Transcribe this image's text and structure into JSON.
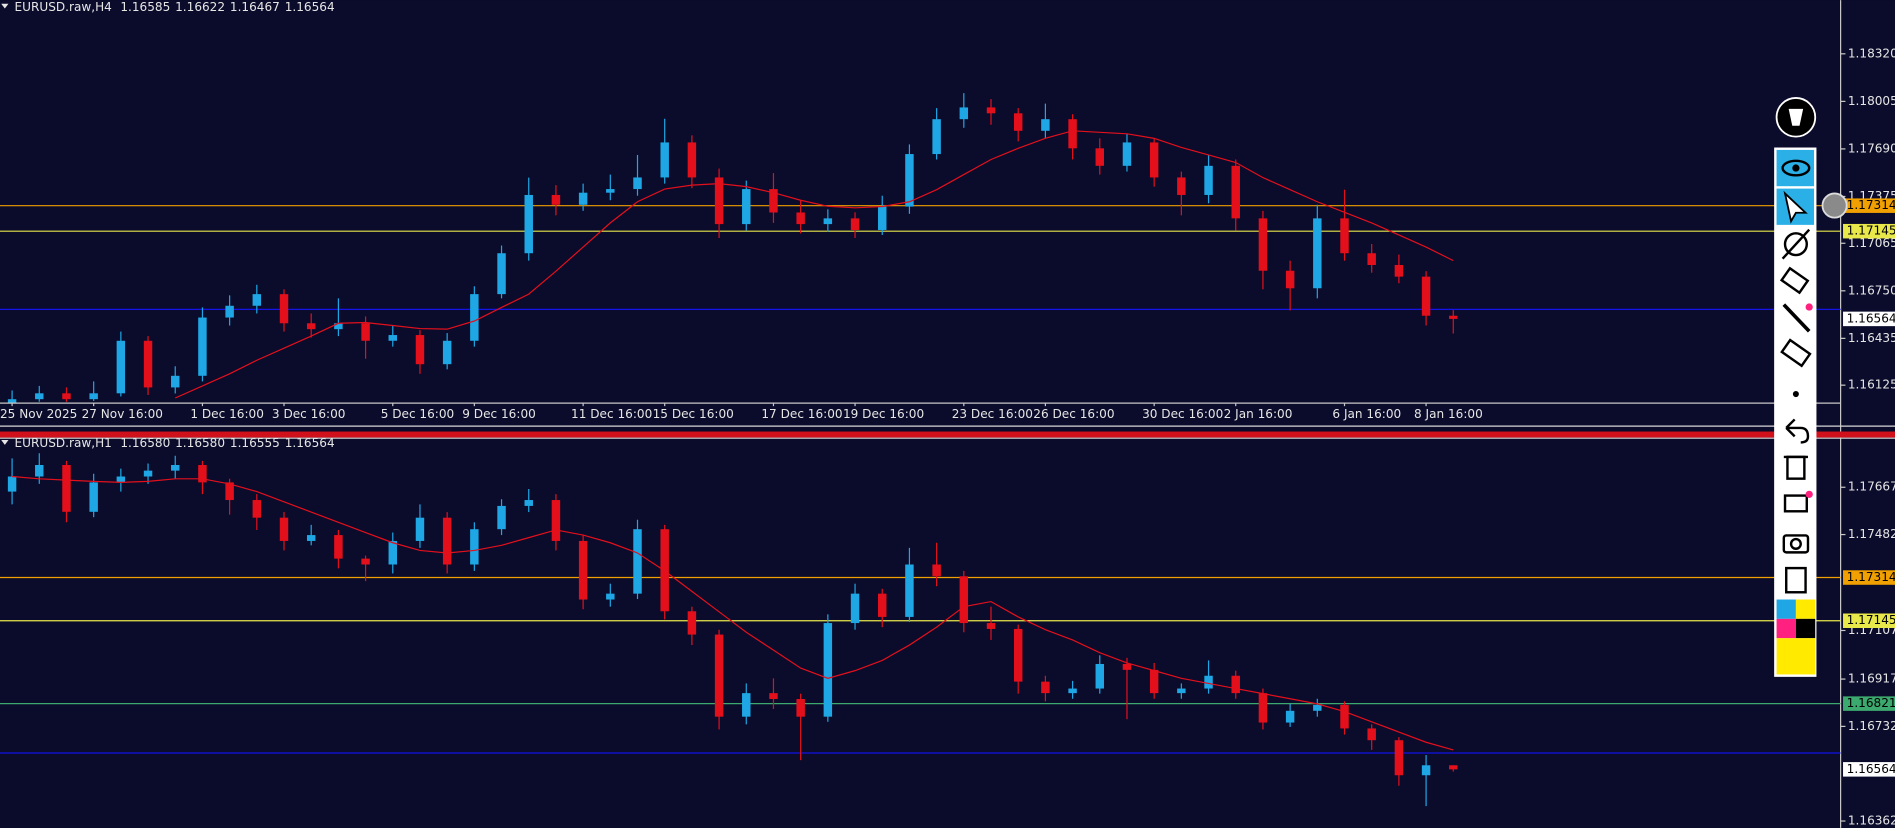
{
  "chart_data": [
    {
      "type": "candlestick",
      "title": "EURUSD.raw,H4",
      "header": [
        1.16585,
        1.16622,
        1.16467,
        1.16564
      ],
      "categories": [
        "25 Nov 2025",
        null,
        null,
        "27 Nov 16:00",
        null,
        null,
        null,
        "1 Dec 16:00",
        null,
        null,
        "3 Dec 16:00",
        null,
        null,
        null,
        "5 Dec 16:00",
        null,
        null,
        "9 Dec 16:00",
        null,
        null,
        null,
        "11 Dec 16:00",
        null,
        null,
        "15 Dec 16:00",
        null,
        null,
        null,
        "17 Dec 16:00",
        null,
        null,
        "19 Dec 16:00",
        null,
        null,
        null,
        "23 Dec 16:00",
        null,
        null,
        "26 Dec 16:00",
        null,
        null,
        null,
        "30 Dec 16:00",
        null,
        null,
        "2 Jan 16:00",
        null,
        null,
        null,
        "6 Jan 16:00",
        null,
        null,
        "8 Jan 16:00",
        null
      ],
      "open": [
        1.16,
        1.16032,
        1.16071,
        1.16032,
        1.16071,
        1.16419,
        1.1611,
        1.16187,
        1.16573,
        1.16651,
        1.16728,
        1.16535,
        1.16496,
        1.16535,
        1.16419,
        1.16457,
        1.16264,
        1.16419,
        1.16728,
        1.16999,
        1.17385,
        1.1732,
        1.174,
        1.17424,
        1.17501,
        1.17733,
        1.17501,
        1.17192,
        1.17424,
        1.17269,
        1.17192,
        1.1723,
        1.17153,
        1.17308,
        1.17656,
        1.17887,
        1.17965,
        1.17926,
        1.1781,
        1.17887,
        1.17694,
        1.17578,
        1.17733,
        1.17501,
        1.17385,
        1.17578,
        1.1723,
        1.16883,
        1.16767,
        1.1723,
        1.16999,
        1.16921,
        1.16844,
        1.16585
      ],
      "high": [
        1.1609,
        1.1612,
        1.1611,
        1.1615,
        1.1648,
        1.1645,
        1.1625,
        1.1664,
        1.1672,
        1.1679,
        1.1676,
        1.166,
        1.167,
        1.1658,
        1.1652,
        1.1649,
        1.1647,
        1.1678,
        1.1705,
        1.175,
        1.1745,
        1.1746,
        1.1752,
        1.1765,
        1.1789,
        1.1778,
        1.1756,
        1.1748,
        1.1753,
        1.1735,
        1.1729,
        1.1727,
        1.1738,
        1.1772,
        1.1796,
        1.1806,
        1.1802,
        1.1796,
        1.1799,
        1.1792,
        1.1776,
        1.1779,
        1.1776,
        1.1754,
        1.1765,
        1.1762,
        1.1728,
        1.1695,
        1.1732,
        1.1742,
        1.1706,
        1.1699,
        1.1688,
        1.16622
      ],
      "low": [
        1.16015,
        1.16015,
        1.16015,
        1.1602,
        1.1605,
        1.1606,
        1.1607,
        1.1615,
        1.1652,
        1.166,
        1.1648,
        1.1644,
        1.1645,
        1.163,
        1.1638,
        1.162,
        1.1623,
        1.1638,
        1.167,
        1.1695,
        1.1725,
        1.1728,
        1.1735,
        1.1738,
        1.1746,
        1.1743,
        1.171,
        1.1715,
        1.172,
        1.1713,
        1.1714,
        1.171,
        1.1712,
        1.1726,
        1.1762,
        1.1783,
        1.1785,
        1.1774,
        1.1776,
        1.1762,
        1.1752,
        1.1754,
        1.1744,
        1.1725,
        1.1733,
        1.1715,
        1.1676,
        1.1662,
        1.167,
        1.1695,
        1.1687,
        1.168,
        1.1652,
        1.16467
      ],
      "close": [
        1.16032,
        1.16071,
        1.16032,
        1.16071,
        1.16419,
        1.1611,
        1.16187,
        1.16573,
        1.16651,
        1.16728,
        1.16535,
        1.16496,
        1.16535,
        1.16419,
        1.16457,
        1.16264,
        1.16419,
        1.16728,
        1.16999,
        1.17385,
        1.1732,
        1.174,
        1.17424,
        1.17501,
        1.17733,
        1.17501,
        1.17192,
        1.17424,
        1.17269,
        1.17192,
        1.1723,
        1.17153,
        1.17308,
        1.17656,
        1.17887,
        1.17965,
        1.17926,
        1.1781,
        1.17887,
        1.17694,
        1.17578,
        1.17733,
        1.17501,
        1.17385,
        1.17578,
        1.1723,
        1.16883,
        1.16767,
        1.1723,
        1.16999,
        1.16921,
        1.16844,
        1.16585,
        1.16564
      ],
      "up_color": "#1ea7e4",
      "down_color": "#e3101c",
      "ma": {
        "color": "#e3101c",
        "values": [
          null,
          null,
          null,
          null,
          null,
          null,
          1.1604,
          1.1612,
          1.162,
          1.1629,
          1.1637,
          1.1645,
          1.16535,
          1.1654,
          1.1652,
          1.165,
          1.16496,
          1.1655,
          1.1664,
          1.16728,
          1.1688,
          1.1704,
          1.172,
          1.1734,
          1.17424,
          1.1745,
          1.1746,
          1.1744,
          1.174,
          1.1735,
          1.1731,
          1.173,
          1.17308,
          1.1734,
          1.1742,
          1.1752,
          1.1762,
          1.17694,
          1.1776,
          1.1781,
          1.178,
          1.1779,
          1.1776,
          1.177,
          1.1765,
          1.176,
          1.175,
          1.1742,
          1.1734,
          1.1727,
          1.172,
          1.1712,
          1.1704,
          1.1695
        ]
      },
      "ylim": [
        1.1601,
        1.1858
      ],
      "yticks": [
        {
          "value": 1.1832,
          "label": "1.18320"
        },
        1.18005,
        {
          "value": 1.1769,
          "label": "1.17690"
        },
        1.17375,
        1.17065,
        {
          "value": 1.1675,
          "label": "1.16750"
        },
        1.16435,
        1.16125
      ],
      "hlines": [
        {
          "value": 1.17314,
          "color": "#f0a000",
          "tagged": true
        },
        {
          "value": 1.17145,
          "color": "#e8e84a",
          "tagged": true
        },
        {
          "value": 1.16627,
          "color": "#1414e6",
          "tagged": false
        }
      ]
    },
    {
      "type": "candlestick",
      "title": "EURUSD.raw,H1",
      "header": [
        {
          "value": 1.1658,
          "label": "1.16580"
        },
        {
          "value": 1.1658,
          "label": "1.16580"
        },
        1.16555,
        1.16564
      ],
      "open": [
        1.1765,
        1.17709,
        1.17754,
        1.17571,
        1.17686,
        1.17709,
        1.17732,
        1.17754,
        1.17686,
        1.17617,
        1.17548,
        1.17457,
        1.1748,
        1.17388,
        1.17365,
        1.17457,
        1.17548,
        1.17365,
        1.17503,
        1.17594,
        1.17617,
        1.17457,
        1.17228,
        1.17251,
        1.17503,
        1.17182,
        1.17091,
        1.1677,
        1.16862,
        1.16839,
        1.1677,
        1.17136,
        1.17251,
        1.1716,
        1.17365,
        1.17319,
        1.17136,
        1.17113,
        1.16907,
        1.16862,
        1.1688,
        1.16976,
        1.16953,
        1.16862,
        1.1688,
        1.1693,
        1.16862,
        1.16747,
        1.16793,
        1.16816,
        1.16724,
        1.16678,
        1.16541,
        1.1658
      ],
      "high": [
        1.1778,
        1.178,
        1.1777,
        1.1772,
        1.1774,
        1.1776,
        1.1779,
        1.1777,
        1.177,
        1.1764,
        1.1757,
        1.1752,
        1.175,
        1.174,
        1.1749,
        1.176,
        1.1757,
        1.1753,
        1.1762,
        1.1766,
        1.1764,
        1.1748,
        1.1729,
        1.1754,
        1.1752,
        1.172,
        1.1711,
        1.169,
        1.1692,
        1.1686,
        1.1717,
        1.1729,
        1.1727,
        1.1743,
        1.1745,
        1.1734,
        1.172,
        1.1713,
        1.1693,
        1.1691,
        1.1701,
        1.17,
        1.1698,
        1.169,
        1.1699,
        1.1695,
        1.1688,
        1.1682,
        1.1684,
        1.1683,
        1.1674,
        1.1669,
        1.1662,
        1.1658
      ],
      "low": [
        1.176,
        1.1768,
        1.1753,
        1.1755,
        1.1765,
        1.1768,
        1.177,
        1.1764,
        1.1756,
        1.175,
        1.1742,
        1.1744,
        1.1735,
        1.173,
        1.1733,
        1.1743,
        1.1733,
        1.1734,
        1.1748,
        1.1757,
        1.1742,
        1.1719,
        1.172,
        1.1723,
        1.1715,
        1.1705,
        1.1672,
        1.1674,
        1.168,
        1.166,
        1.1675,
        1.1711,
        1.1712,
        1.1714,
        1.1728,
        1.171,
        1.1707,
        1.1686,
        1.1683,
        1.1684,
        1.1686,
        1.1676,
        1.1684,
        1.1684,
        1.1686,
        1.1684,
        1.1672,
        1.1673,
        1.1677,
        1.167,
        1.1664,
        1.165,
        1.1642,
        1.16555
      ],
      "close": [
        1.17709,
        1.17754,
        1.17571,
        1.17686,
        1.17709,
        1.17732,
        1.17754,
        1.17686,
        1.17617,
        1.17548,
        1.17457,
        1.1748,
        1.17388,
        1.17365,
        1.17457,
        1.17548,
        1.17365,
        1.17503,
        1.17594,
        1.17617,
        1.17457,
        1.17228,
        1.17251,
        1.17503,
        1.17182,
        1.17091,
        1.1677,
        1.16862,
        1.16839,
        1.1677,
        1.17136,
        1.17251,
        1.1716,
        1.17365,
        1.17319,
        1.17136,
        1.17113,
        1.16907,
        1.16862,
        1.1688,
        1.16976,
        1.16953,
        1.16862,
        1.1688,
        1.1693,
        1.16862,
        1.16747,
        1.16793,
        1.16816,
        1.16724,
        1.16678,
        1.16541,
        1.1658,
        1.16564
      ],
      "up_color": "#1ea7e4",
      "down_color": "#e3101c",
      "ma": {
        "color": "#e3101c",
        "values": [
          1.17709,
          1.177,
          1.17695,
          1.1769,
          1.17686,
          1.1769,
          1.177,
          1.177,
          1.1768,
          1.1765,
          1.1761,
          1.1757,
          1.1753,
          1.1749,
          1.1745,
          1.1742,
          1.1741,
          1.1742,
          1.1744,
          1.1747,
          1.175,
          1.1748,
          1.1745,
          1.1741,
          1.1734,
          1.1726,
          1.1718,
          1.171,
          1.1703,
          1.1696,
          1.1692,
          1.1695,
          1.1699,
          1.1705,
          1.1712,
          1.172,
          1.1722,
          1.1716,
          1.1711,
          1.1707,
          1.1702,
          1.1698,
          1.1695,
          1.1692,
          1.169,
          1.1688,
          1.1686,
          1.1684,
          1.1682,
          1.1679,
          1.1675,
          1.1671,
          1.1667,
          1.1664
        ]
      },
      "ylim": [
        1.16335,
        1.17814
      ],
      "yticks": [
        1.17667,
        1.17482,
        1.17107,
        1.16917,
        1.16732,
        1.16362
      ],
      "hlines": [
        {
          "value": 1.17314,
          "color": "#f0a000",
          "tagged": true
        },
        {
          "value": 1.17145,
          "color": "#e8e84a",
          "tagged": true
        },
        {
          "value": 1.16821,
          "color": "#3caa6e",
          "tagged": true
        },
        {
          "value": 1.16628,
          "color": "#1414e6",
          "tagged": false
        }
      ]
    }
  ]
}
